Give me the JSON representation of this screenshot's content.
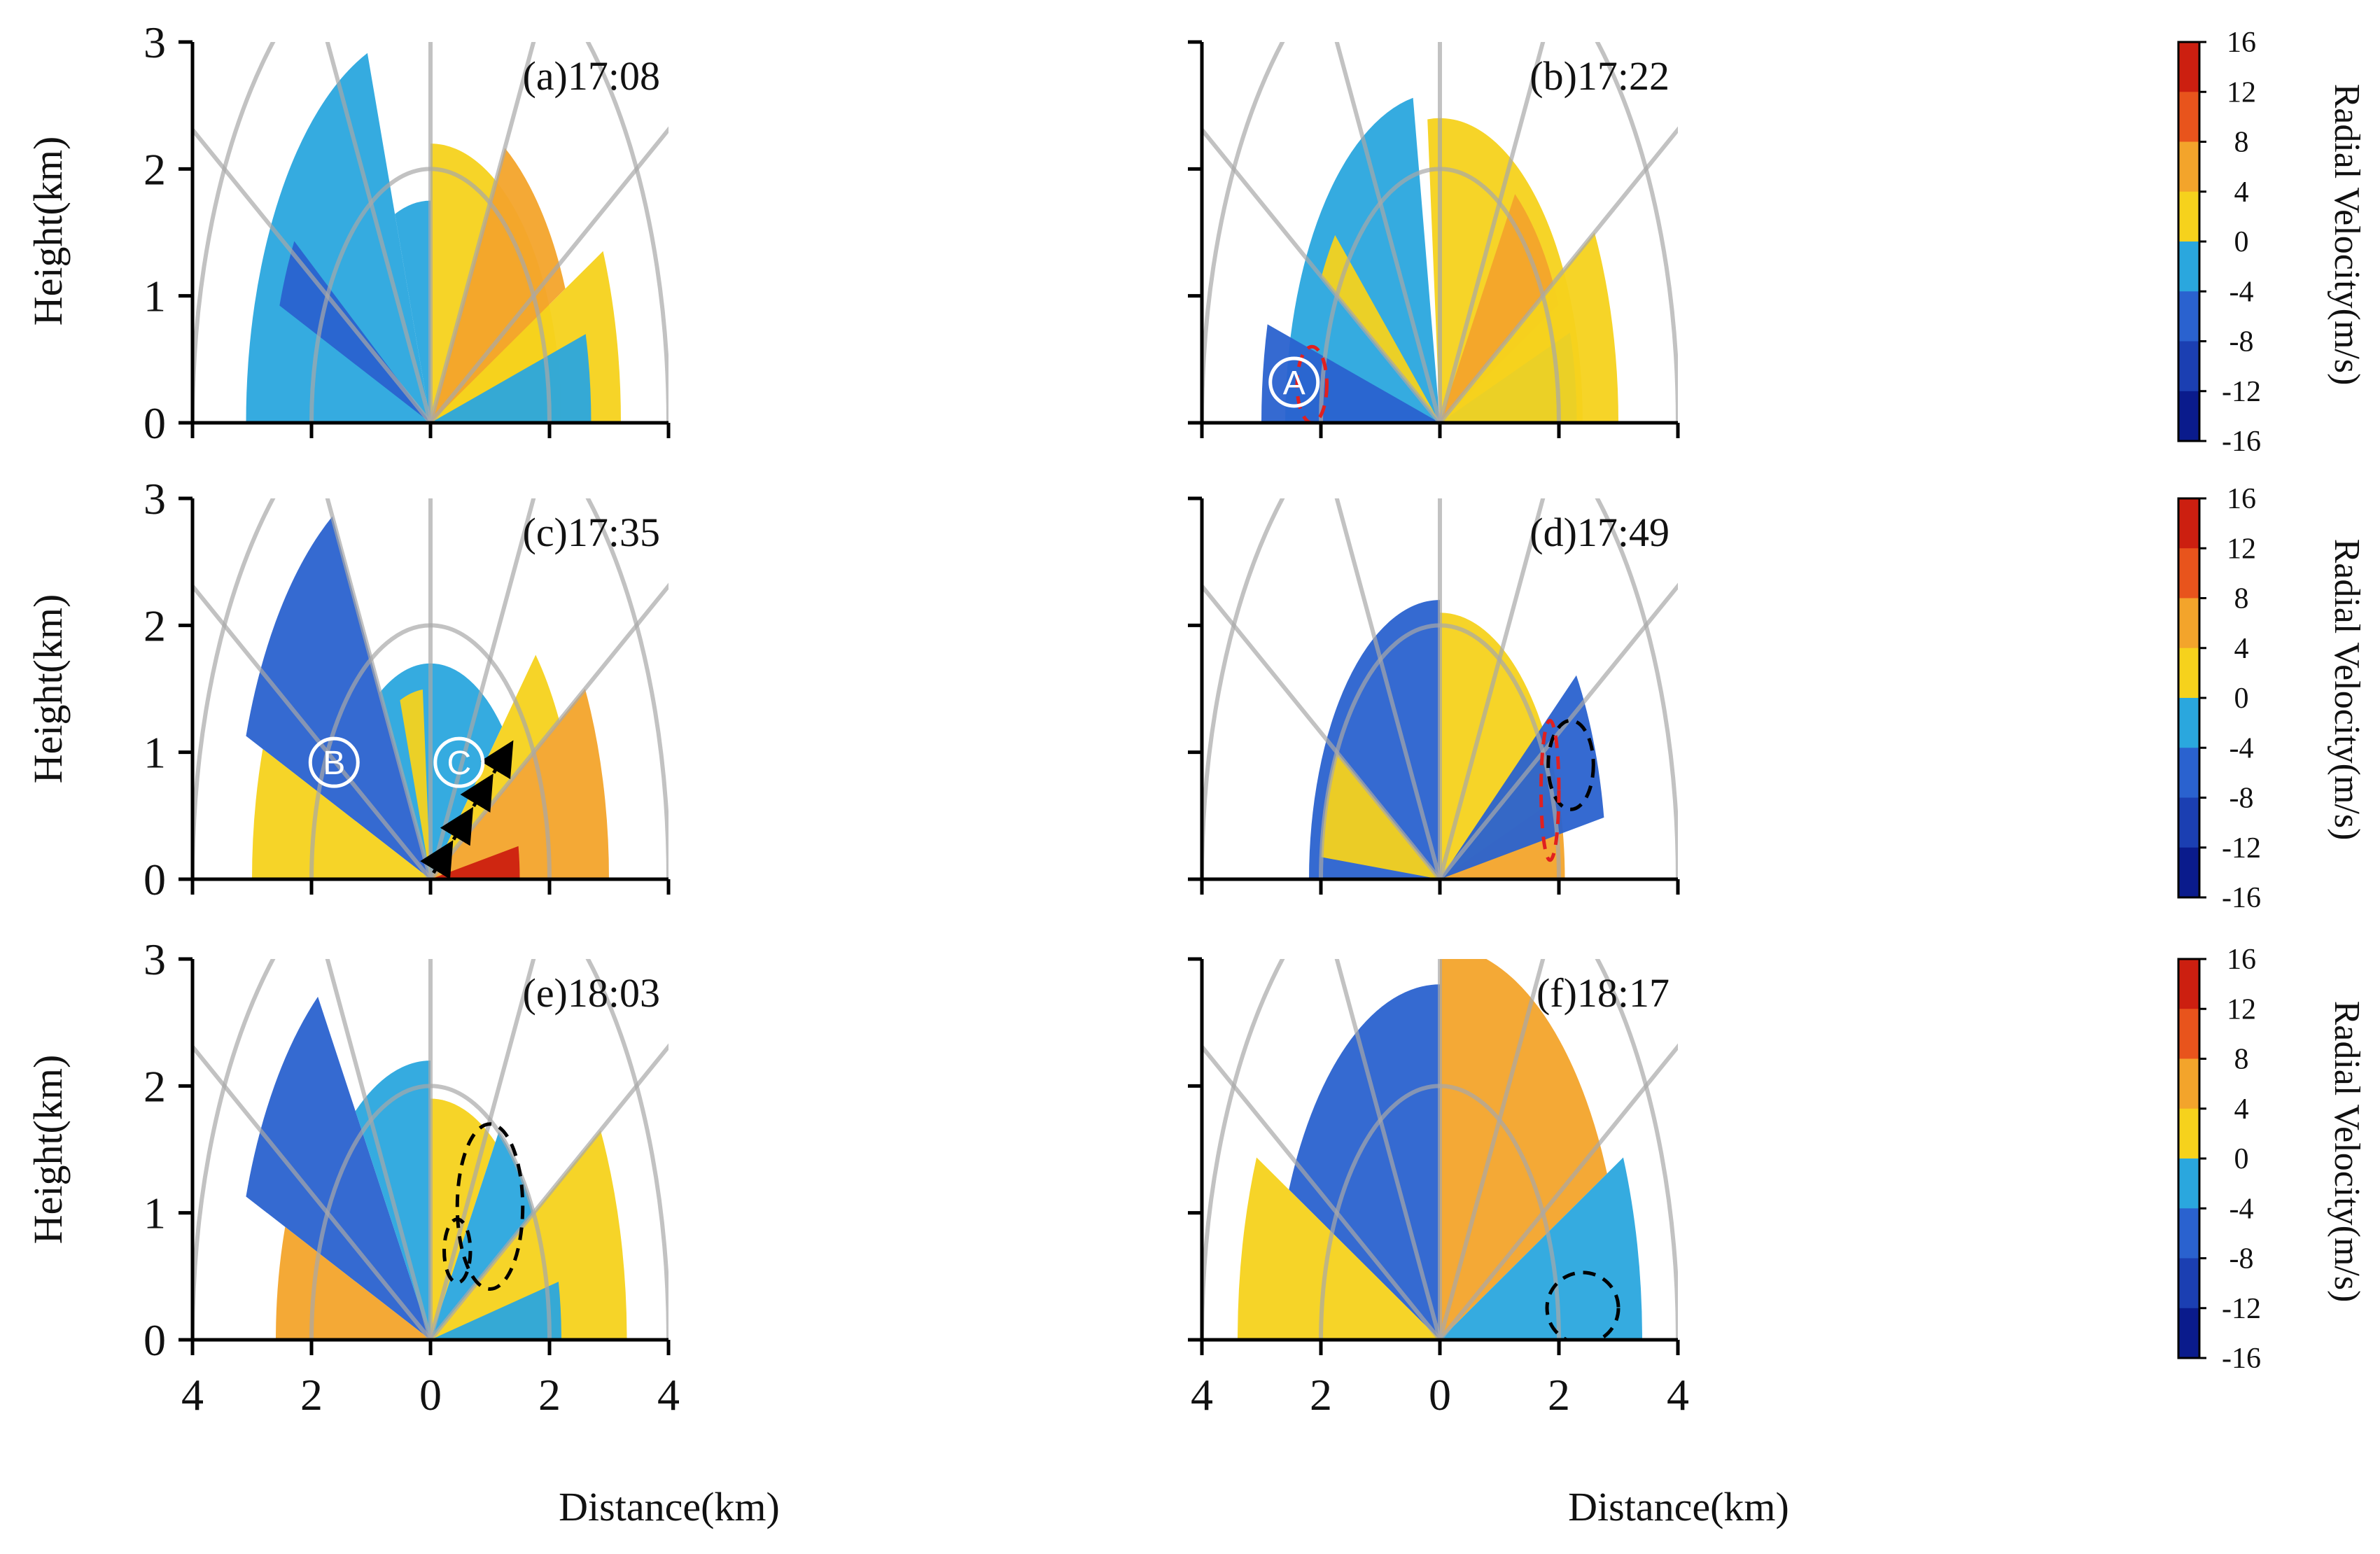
{
  "chart_data": {
    "type": "heatmap",
    "description_kind": "RHI radial velocity panels",
    "xlabel": "Distance(km)",
    "ylabel": "Height(km)",
    "colorbar_label": "Radial Velocity(m/s)",
    "xlim": [
      -4,
      4
    ],
    "ylim": [
      0,
      3
    ],
    "x_tick_labels": [
      "4",
      "2",
      "0",
      "2",
      "4"
    ],
    "y_tick_labels": [
      "0",
      "1",
      "2",
      "3"
    ],
    "colorbar_ticks": [
      16,
      12,
      8,
      4,
      0,
      -4,
      -8,
      -12,
      -16
    ],
    "colorbar_range": [
      -16,
      16
    ],
    "colors": {
      "neg_strong": "#0a1b8c",
      "neg_mid": "#2a62cf",
      "neg_weak": "#2aa7de",
      "pos_weak": "#f6d21c",
      "pos_mid": "#f3a42b",
      "pos_strong": "#cc1f10",
      "grid": "#a8a8a8"
    },
    "panels": [
      {
        "title": "(a)17:08",
        "echo": [
          {
            "from_deg": 110,
            "to_deg": 180,
            "range_km": 3.1,
            "velocity": -5
          },
          {
            "from_deg": 148,
            "to_deg": 160,
            "range_km": 2.7,
            "velocity": -7
          },
          {
            "from_deg": 90,
            "to_deg": 110,
            "range_km": 1.75,
            "velocity": -2
          },
          {
            "from_deg": 0,
            "to_deg": 90,
            "range_km": 2.2,
            "velocity": 4
          },
          {
            "from_deg": 0,
            "to_deg": 25,
            "range_km": 3.2,
            "velocity": 4
          },
          {
            "from_deg": 25,
            "to_deg": 60,
            "range_km": 2.5,
            "velocity": 6
          },
          {
            "from_deg": 0,
            "to_deg": 15,
            "range_km": 2.7,
            "velocity": -3
          }
        ],
        "markers": [],
        "ellipses": [],
        "arrows": []
      },
      {
        "title": "(b)17:22",
        "echo": [
          {
            "from_deg": 100,
            "to_deg": 180,
            "range_km": 2.6,
            "velocity": -5
          },
          {
            "from_deg": 165,
            "to_deg": 180,
            "range_km": 3.0,
            "velocity": -10
          },
          {
            "from_deg": 140,
            "to_deg": 150,
            "range_km": 2.3,
            "velocity": 4
          },
          {
            "from_deg": 0,
            "to_deg": 95,
            "range_km": 2.4,
            "velocity": 4
          },
          {
            "from_deg": 25,
            "to_deg": 55,
            "range_km": 2.2,
            "velocity": 7
          },
          {
            "from_deg": 0,
            "to_deg": 18,
            "range_km": 2.3,
            "velocity": -3
          },
          {
            "from_deg": 0,
            "to_deg": 30,
            "range_km": 3.0,
            "velocity": 3
          }
        ],
        "markers": [
          {
            "label": "A",
            "x_km": -2.45,
            "z_km": 0.32
          }
        ],
        "ellipses": [
          {
            "cx_km": -2.15,
            "cz_km": 0.3,
            "rx_km": 0.25,
            "rz_km": 0.3,
            "style": "red"
          }
        ],
        "arrows": []
      },
      {
        "title": "(c)17:35",
        "echo": [
          {
            "from_deg": 120,
            "to_deg": 160,
            "range_km": 3.3,
            "velocity": -7
          },
          {
            "from_deg": 90,
            "to_deg": 120,
            "range_km": 1.7,
            "velocity": -4
          },
          {
            "from_deg": 95,
            "to_deg": 110,
            "range_km": 1.5,
            "velocity": 3
          },
          {
            "from_deg": 160,
            "to_deg": 180,
            "range_km": 3.0,
            "velocity": 4
          },
          {
            "from_deg": 45,
            "to_deg": 90,
            "range_km": 1.7,
            "velocity": -5
          },
          {
            "from_deg": 30,
            "to_deg": 45,
            "range_km": 2.5,
            "velocity": 4
          },
          {
            "from_deg": 0,
            "to_deg": 30,
            "range_km": 3.0,
            "velocity": 9
          },
          {
            "from_deg": 0,
            "to_deg": 10,
            "range_km": 1.5,
            "velocity": 14
          }
        ],
        "markers": [
          {
            "label": "B",
            "x_km": -1.62,
            "z_km": 0.92
          },
          {
            "label": "C",
            "x_km": 0.48,
            "z_km": 0.92
          }
        ],
        "ellipses": [],
        "arrows": [
          {
            "from_x_km": 0.05,
            "from_z_km": 0.05,
            "to_x_km": 1.4,
            "to_z_km": 1.1
          }
        ]
      },
      {
        "title": "(d)17:49",
        "echo": [
          {
            "from_deg": 90,
            "to_deg": 180,
            "range_km": 2.2,
            "velocity": -7
          },
          {
            "from_deg": 150,
            "to_deg": 175,
            "range_km": 2.0,
            "velocity": 3
          },
          {
            "from_deg": 15,
            "to_deg": 90,
            "range_km": 2.1,
            "velocity": 5
          },
          {
            "from_deg": 0,
            "to_deg": 18,
            "range_km": 2.1,
            "velocity": 11
          },
          {
            "from_deg": 10,
            "to_deg": 35,
            "range_km": 2.8,
            "velocity": -6
          }
        ],
        "markers": [],
        "ellipses": [
          {
            "cx_km": 2.2,
            "cz_km": 0.9,
            "rx_km": 0.38,
            "rz_km": 0.35,
            "style": "black"
          },
          {
            "cx_km": 1.85,
            "cz_km": 0.7,
            "rx_km": 0.15,
            "rz_km": 0.55,
            "style": "red"
          }
        ],
        "arrows": []
      },
      {
        "title": "(e)18:03",
        "echo": [
          {
            "from_deg": 125,
            "to_deg": 160,
            "range_km": 3.3,
            "velocity": -7
          },
          {
            "from_deg": 90,
            "to_deg": 125,
            "range_km": 2.2,
            "velocity": -4
          },
          {
            "from_deg": 160,
            "to_deg": 180,
            "range_km": 2.6,
            "velocity": 6
          },
          {
            "from_deg": 55,
            "to_deg": 90,
            "range_km": 1.9,
            "velocity": 3
          },
          {
            "from_deg": 30,
            "to_deg": 55,
            "range_km": 2.0,
            "velocity": -3
          },
          {
            "from_deg": 0,
            "to_deg": 30,
            "range_km": 3.3,
            "velocity": 5
          },
          {
            "from_deg": 0,
            "to_deg": 12,
            "range_km": 2.2,
            "velocity": -4
          }
        ],
        "markers": [],
        "ellipses": [
          {
            "cx_km": 0.45,
            "cz_km": 0.7,
            "rx_km": 0.22,
            "rz_km": 0.25,
            "style": "black"
          },
          {
            "cx_km": 1.0,
            "cz_km": 1.05,
            "rx_km": 0.55,
            "rz_km": 0.65,
            "style": "black"
          }
        ],
        "arrows": []
      },
      {
        "title": "(f)18:17",
        "echo": [
          {
            "from_deg": 90,
            "to_deg": 155,
            "range_km": 2.8,
            "velocity": -6
          },
          {
            "from_deg": 155,
            "to_deg": 180,
            "range_km": 3.4,
            "velocity": 5
          },
          {
            "from_deg": 25,
            "to_deg": 90,
            "range_km": 3.1,
            "velocity": 8
          },
          {
            "from_deg": 0,
            "to_deg": 25,
            "range_km": 3.4,
            "velocity": -4
          }
        ],
        "markers": [],
        "ellipses": [
          {
            "cx_km": 2.4,
            "cz_km": 0.25,
            "rx_km": 0.6,
            "rz_km": 0.28,
            "style": "black"
          }
        ],
        "arrows": []
      }
    ]
  }
}
